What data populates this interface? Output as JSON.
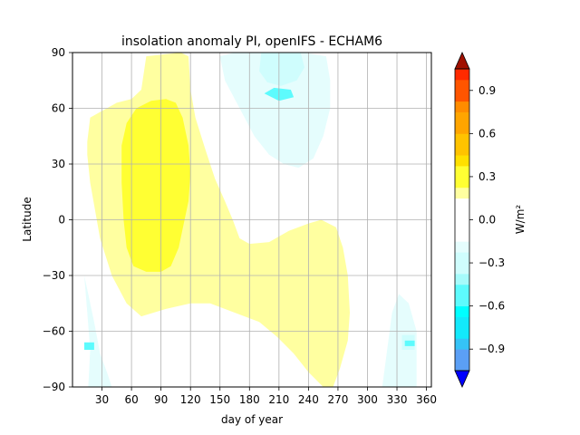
{
  "chart_data": {
    "type": "heatmap",
    "title": "insolation anomaly PI, openIFS - ECHAM6",
    "xlabel": "day of year",
    "ylabel": "Latitude",
    "xlim": [
      0,
      365
    ],
    "ylim": [
      -90,
      90
    ],
    "x_ticks": [
      "30",
      "60",
      "90",
      "120",
      "150",
      "180",
      "210",
      "240",
      "270",
      "300",
      "330",
      "360"
    ],
    "y_ticks": [
      "−90",
      "−60",
      "−30",
      "0",
      "30",
      "60",
      "90"
    ],
    "grid": true,
    "colorbar": {
      "label": "W/m²",
      "ticks": [
        "−0.9",
        "−0.6",
        "−0.3",
        "0.0",
        "0.3",
        "0.6",
        "0.9"
      ],
      "range": [
        -1.05,
        1.05
      ],
      "extend": "both",
      "levels": [
        {
          "from": -1.05,
          "to": -0.9,
          "color": "#5b9ff5"
        },
        {
          "from": -0.9,
          "to": -0.825,
          "color": "#35c3f7"
        },
        {
          "from": -0.825,
          "to": -0.675,
          "color": "#13e9fb"
        },
        {
          "from": -0.675,
          "to": -0.6,
          "color": "#00ffff"
        },
        {
          "from": -0.6,
          "to": -0.45,
          "color": "#5dfbfd"
        },
        {
          "from": -0.45,
          "to": -0.375,
          "color": "#a6fbfb"
        },
        {
          "from": -0.375,
          "to": -0.225,
          "color": "#cffdfd"
        },
        {
          "from": -0.225,
          "to": -0.15,
          "color": "#e5fdfd"
        },
        {
          "from": -0.15,
          "to": 0.15,
          "color": "#ffffff"
        },
        {
          "from": 0.15,
          "to": 0.225,
          "color": "#ffffa0"
        },
        {
          "from": 0.225,
          "to": 0.375,
          "color": "#ffff33"
        },
        {
          "from": 0.375,
          "to": 0.45,
          "color": "#ffe000"
        },
        {
          "from": 0.45,
          "to": 0.6,
          "color": "#ffc300"
        },
        {
          "from": 0.6,
          "to": 0.75,
          "color": "#ffa500"
        },
        {
          "from": 0.75,
          "to": 0.825,
          "color": "#ff8c00"
        },
        {
          "from": 0.825,
          "to": 0.975,
          "color": "#ff5500"
        },
        {
          "from": 0.975,
          "to": 1.05,
          "color": "#ff2a00"
        }
      ],
      "under_color": "#0000ff",
      "over_color": "#a01000"
    },
    "regions": [
      {
        "level": 0.18,
        "color": "#ffffa0",
        "points": [
          [
            15,
            42
          ],
          [
            18,
            55
          ],
          [
            28,
            58
          ],
          [
            45,
            63
          ],
          [
            60,
            65
          ],
          [
            70,
            70
          ],
          [
            75,
            88
          ],
          [
            110,
            90
          ],
          [
            118,
            88
          ],
          [
            120,
            70
          ],
          [
            125,
            55
          ],
          [
            135,
            38
          ],
          [
            145,
            22
          ],
          [
            155,
            10
          ],
          [
            163,
            0
          ],
          [
            170,
            -10
          ],
          [
            180,
            -13
          ],
          [
            200,
            -12
          ],
          [
            220,
            -6
          ],
          [
            240,
            -2
          ],
          [
            253,
            0
          ],
          [
            268,
            -4
          ],
          [
            275,
            -15
          ],
          [
            280,
            -30
          ],
          [
            282,
            -50
          ],
          [
            280,
            -65
          ],
          [
            272,
            -80
          ],
          [
            265,
            -90
          ],
          [
            255,
            -90
          ],
          [
            240,
            -82
          ],
          [
            225,
            -72
          ],
          [
            208,
            -63
          ],
          [
            190,
            -55
          ],
          [
            165,
            -50
          ],
          [
            140,
            -45
          ],
          [
            120,
            -45
          ],
          [
            95,
            -48
          ],
          [
            70,
            -52
          ],
          [
            55,
            -45
          ],
          [
            40,
            -30
          ],
          [
            28,
            -10
          ],
          [
            18,
            20
          ],
          [
            15,
            35
          ]
        ]
      },
      {
        "level": 0.3,
        "color": "#ffff33",
        "points": [
          [
            50,
            40
          ],
          [
            55,
            52
          ],
          [
            65,
            60
          ],
          [
            80,
            64
          ],
          [
            95,
            65
          ],
          [
            105,
            63
          ],
          [
            112,
            55
          ],
          [
            118,
            40
          ],
          [
            120,
            25
          ],
          [
            118,
            10
          ],
          [
            112,
            -5
          ],
          [
            108,
            -15
          ],
          [
            100,
            -25
          ],
          [
            90,
            -28
          ],
          [
            75,
            -28
          ],
          [
            62,
            -25
          ],
          [
            55,
            -15
          ],
          [
            52,
            0
          ],
          [
            50,
            20
          ]
        ]
      },
      {
        "level": -0.18,
        "color": "#e5fdfd",
        "points": [
          [
            150,
            88
          ],
          [
            165,
            90
          ],
          [
            235,
            90
          ],
          [
            258,
            88
          ],
          [
            262,
            75
          ],
          [
            262,
            60
          ],
          [
            255,
            45
          ],
          [
            245,
            33
          ],
          [
            230,
            28
          ],
          [
            215,
            30
          ],
          [
            200,
            35
          ],
          [
            185,
            45
          ],
          [
            175,
            55
          ],
          [
            165,
            65
          ],
          [
            155,
            75
          ]
        ]
      },
      {
        "level": -0.3,
        "color": "#cffdfd",
        "points": [
          [
            192,
            90
          ],
          [
            232,
            90
          ],
          [
            236,
            82
          ],
          [
            228,
            75
          ],
          [
            212,
            72
          ],
          [
            198,
            74
          ],
          [
            190,
            80
          ]
        ]
      },
      {
        "level": -0.5,
        "color": "#5dfbfd",
        "points": [
          [
            195,
            68
          ],
          [
            210,
            64
          ],
          [
            225,
            66
          ],
          [
            222,
            70
          ],
          [
            205,
            71
          ]
        ]
      },
      {
        "level": -0.18,
        "color": "#e5fdfd",
        "points": [
          [
            12,
            -30
          ],
          [
            15,
            -50
          ],
          [
            18,
            -70
          ],
          [
            16,
            -90
          ],
          [
            40,
            -90
          ],
          [
            35,
            -82
          ],
          [
            28,
            -72
          ],
          [
            22,
            -55
          ]
        ]
      },
      {
        "level": -0.18,
        "color": "#e5fdfd",
        "points": [
          [
            315,
            -90
          ],
          [
            350,
            -90
          ],
          [
            350,
            -60
          ],
          [
            342,
            -45
          ],
          [
            332,
            -40
          ],
          [
            325,
            -50
          ],
          [
            320,
            -70
          ]
        ]
      },
      {
        "level": -0.3,
        "color": "#cffdfd",
        "points": [
          [
            335,
            -62
          ],
          [
            348,
            -62
          ],
          [
            348,
            -70
          ],
          [
            335,
            -70
          ]
        ]
      },
      {
        "level": -0.5,
        "color": "#5dfbfd",
        "points": [
          [
            338,
            -65
          ],
          [
            348,
            -65
          ],
          [
            348,
            -68
          ],
          [
            338,
            -68
          ]
        ]
      },
      {
        "level": -0.5,
        "color": "#5dfbfd",
        "points": [
          [
            12,
            -66
          ],
          [
            22,
            -66
          ],
          [
            22,
            -70
          ],
          [
            12,
            -70
          ]
        ]
      }
    ]
  }
}
